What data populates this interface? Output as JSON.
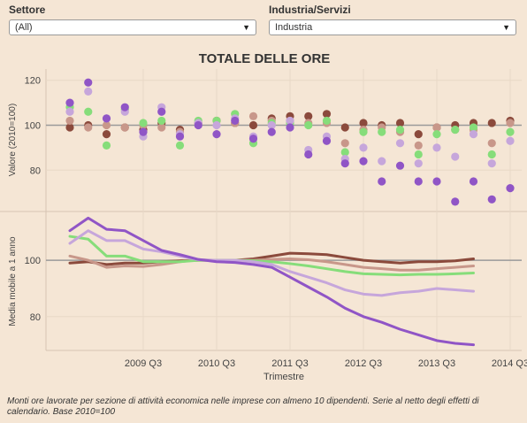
{
  "filters": {
    "settore": {
      "label": "Settore",
      "value": "(All)"
    },
    "industria": {
      "label": "Industria/Servizi",
      "value": "Industria"
    }
  },
  "footnote": "Monti ore lavorate per sezione di attività economica nelle imprese con almeno 10 dipendenti. Serie al netto degli effetti di calendario. Base 2010=100",
  "colors": {
    "background": "#f5e6d5",
    "grid": "#e8d8c6",
    "reference": "#9a9a9a",
    "dark_brown": "#8b4a3c",
    "rose": "#c8978a",
    "green": "#86dd7a",
    "light_purple": "#c6a6db",
    "purple": "#9055c6"
  },
  "chart_data": {
    "type": "scatter+line",
    "title": "TOTALE DELLE ORE",
    "xlabel": "Trimestre",
    "x_tick_labels": [
      "2009 Q3",
      "2010 Q3",
      "2011 Q3",
      "2012 Q3",
      "2013 Q3",
      "2014 Q3"
    ],
    "quarters": [
      "2008 Q3",
      "2008 Q4",
      "2009 Q1",
      "2009 Q2",
      "2009 Q3",
      "2009 Q4",
      "2010 Q1",
      "2010 Q2",
      "2010 Q3",
      "2010 Q4",
      "2011 Q1",
      "2011 Q2",
      "2011 Q3",
      "2011 Q4",
      "2012 Q1",
      "2012 Q2",
      "2012 Q3",
      "2012 Q4",
      "2013 Q1",
      "2013 Q2",
      "2013 Q3",
      "2013 Q4",
      "2014 Q1",
      "2014 Q2",
      "2014 Q3",
      "2014 Q4"
    ],
    "panels": [
      {
        "ylabel": "Valore (2010=100)",
        "type": "scatter",
        "ylim": [
          62,
          125
        ],
        "yticks": [
          80,
          100,
          120
        ],
        "reference_line": 100,
        "series": [
          {
            "color_key": "dark_brown",
            "values": [
              99,
              100,
              96,
              99,
              98,
              101,
              98,
              101,
              102,
              101,
              100,
              103,
              104,
              104,
              105,
              99,
              101,
              100,
              101,
              96,
              99,
              100,
              101,
              101,
              102
            ]
          },
          {
            "color_key": "rose",
            "values": [
              102,
              99,
              100,
              99,
              100,
              99,
              97,
              101,
              102,
              101,
              104,
              102,
              102,
              101,
              101,
              92,
              98,
              99,
              97,
              91,
              99,
              98,
              98,
              92,
              101
            ]
          },
          {
            "color_key": "green",
            "values": [
              108,
              106,
              91,
              107,
              101,
              102,
              91,
              102,
              102,
              105,
              92,
              101,
              101,
              100,
              102,
              88,
              97,
              97,
              98,
              87,
              96,
              98,
              99,
              87,
              97
            ]
          },
          {
            "color_key": "light_purple",
            "values": [
              106,
              115,
              103,
              106,
              95,
              108,
              96,
              101,
              100,
              103,
              95,
              100,
              102,
              89,
              95,
              85,
              90,
              84,
              92,
              83,
              90,
              86,
              96,
              83,
              93
            ]
          },
          {
            "color_key": "purple",
            "values": [
              110,
              119,
              103,
              108,
              97,
              106,
              95,
              100,
              96,
              102,
              94,
              97,
              99,
              87,
              93,
              83,
              84,
              75,
              82,
              75,
              75,
              66,
              75,
              67,
              72
            ]
          }
        ]
      },
      {
        "ylabel": "Media mobile a 1 anno",
        "type": "line",
        "ylim": [
          68,
          117
        ],
        "yticks": [
          80,
          100
        ],
        "reference_line": 100,
        "series": [
          {
            "color_key": "dark_brown",
            "values": [
              99,
              99.5,
              98.5,
              99,
              99,
              99.5,
              99.8,
              100,
              100,
              100,
              100.5,
              101.5,
              102.5,
              102.3,
              102,
              101,
              100,
              99.5,
              99,
              99.5,
              99.5,
              99.8,
              100.5
            ]
          },
          {
            "color_key": "rose",
            "values": [
              101.5,
              100,
              97.5,
              98,
              97.8,
              98.5,
              99.5,
              100.2,
              100,
              100,
              100,
              100.3,
              100.5,
              100.2,
              99.5,
              98.5,
              97.5,
              97,
              96.5,
              96.5,
              97,
              97.5,
              98
            ]
          },
          {
            "color_key": "green",
            "values": [
              108.5,
              107.5,
              101.5,
              101.5,
              99.5,
              99.5,
              99.5,
              100,
              100,
              100,
              99.8,
              99.5,
              98.8,
              98,
              97,
              96,
              95.2,
              95,
              94.8,
              95,
              95,
              95.2,
              95.5
            ]
          },
          {
            "color_key": "light_purple",
            "values": [
              106,
              110.5,
              107,
              107,
              104,
              103,
              101.5,
              100.2,
              100,
              100,
              99.5,
              98.5,
              96,
              94,
              92,
              89.5,
              88,
              87.5,
              88.5,
              89,
              90,
              89.5,
              89
            ]
          },
          {
            "color_key": "purple",
            "values": [
              110.5,
              115,
              111,
              110.5,
              107,
              103.5,
              102,
              100.3,
              99.5,
              99.2,
              98.5,
              97.5,
              94,
              90.5,
              87,
              83,
              80,
              78,
              75.5,
              73.5,
              71.5,
              70.5,
              70
            ]
          }
        ]
      }
    ]
  }
}
